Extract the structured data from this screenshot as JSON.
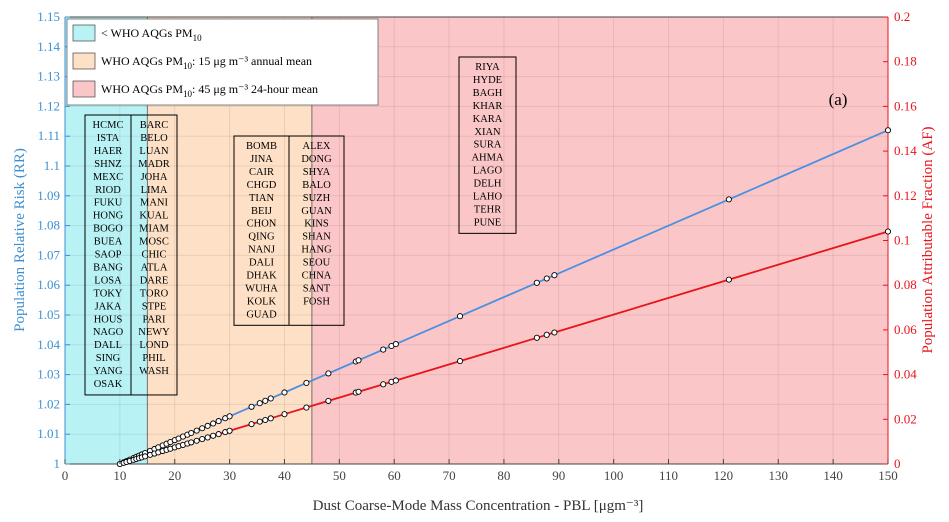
{
  "chart_data": {
    "type": "line",
    "panel_label": "(a)",
    "xlabel": "Dust Coarse-Mode Mass Concentration - PBL  [μgm⁻³]",
    "ylabel_left": "Population Relative Risk (RR)",
    "ylabel_right": "Population Attributable Fraction (AF)",
    "xlim": [
      0,
      150
    ],
    "ylim_left": [
      1,
      1.15
    ],
    "ylim_right": [
      0,
      0.2
    ],
    "x_ticks": [
      "0",
      "10",
      "20",
      "30",
      "40",
      "50",
      "60",
      "70",
      "80",
      "90",
      "100",
      "110",
      "120",
      "130",
      "140",
      "150"
    ],
    "y_left_ticks": [
      "1",
      "1.01",
      "1.02",
      "1.03",
      "1.04",
      "1.05",
      "1.06",
      "1.07",
      "1.08",
      "1.09",
      "1.1",
      "1.11",
      "1.12",
      "1.13",
      "1.14",
      "1.15"
    ],
    "y_right_ticks": [
      "0",
      "0.02",
      "0.04",
      "0.06",
      "0.08",
      "0.1",
      "0.12",
      "0.14",
      "0.16",
      "0.18",
      "0.2"
    ],
    "grid": true,
    "colors": {
      "rr_line": "#4a90e2",
      "af_line": "#e8141b",
      "left_axis": "#3d8fd1",
      "right_axis": "#e8141b",
      "zone_below": "#b9f2f5",
      "zone_annual": "#fde0c6",
      "zone_24h": "#fbc6c8"
    },
    "zones": [
      {
        "from": 0,
        "to": 15,
        "color": "#b9f2f5",
        "legend": "< WHO AQGs PM",
        "sub": "10",
        "tail": ""
      },
      {
        "from": 15,
        "to": 45,
        "color": "#fde0c6",
        "legend": "WHO AQGs PM",
        "sub": "10",
        "tail": ": 15 μg m⁻³ annual mean"
      },
      {
        "from": 45,
        "to": 150,
        "color": "#fbc6c8",
        "legend": "WHO AQGs PM",
        "sub": "10",
        "tail": ": 45 μg m⁻³ 24-hour mean"
      }
    ],
    "legend_position": "top-left",
    "series": [
      {
        "axis": "left",
        "x": [
          10,
          10.7,
          11.2,
          11.8,
          12.5,
          13,
          13.5,
          14,
          14.6,
          15.5,
          16.3,
          17,
          17.8,
          18.5,
          19.2,
          20,
          20.7,
          21.5,
          22.3,
          23,
          24,
          25,
          26,
          27,
          28,
          29.2,
          30,
          34,
          35.5,
          36.5,
          37.5,
          40,
          44,
          48,
          53,
          53.5,
          58,
          59.5,
          60.3,
          72,
          86,
          87.8,
          89.2,
          121,
          150
        ],
        "values": [
          1.0,
          1.00056,
          1.00096,
          1.00144,
          1.002,
          1.0024,
          1.0028,
          1.0032,
          1.00368,
          1.0044,
          1.00504,
          1.0056,
          1.00624,
          1.0068,
          1.00736,
          1.008,
          1.00856,
          1.0092,
          1.00984,
          1.0104,
          1.0112,
          1.012,
          1.0128,
          1.0136,
          1.0144,
          1.01536,
          1.016,
          1.0192,
          1.0204,
          1.0212,
          1.022,
          1.024,
          1.0272,
          1.0304,
          1.0344,
          1.0348,
          1.0384,
          1.0396,
          1.04024,
          1.0496,
          1.0608,
          1.06224,
          1.06336,
          1.0888,
          1.112
        ]
      },
      {
        "axis": "right",
        "x": [
          10,
          10.7,
          11.2,
          11.8,
          12.5,
          13,
          13.5,
          14,
          14.6,
          15.5,
          16.3,
          17,
          17.8,
          18.5,
          19.2,
          20,
          20.7,
          21.5,
          22.3,
          23,
          24,
          25,
          26,
          27,
          28,
          29.2,
          30,
          34,
          35.5,
          36.5,
          37.5,
          40,
          44,
          48,
          53,
          53.5,
          58,
          59.5,
          60.3,
          72,
          86,
          87.8,
          89.2,
          121,
          150
        ],
        "values": [
          0,
          0.00052,
          0.00089,
          0.00134,
          0.00186,
          0.00223,
          0.0026,
          0.00297,
          0.00342,
          0.00409,
          0.00468,
          0.0052,
          0.0058,
          0.00632,
          0.00684,
          0.00743,
          0.00795,
          0.00854,
          0.00914,
          0.00966,
          0.0104,
          0.01115,
          0.01189,
          0.01263,
          0.01338,
          0.01427,
          0.01486,
          0.01783,
          0.01895,
          0.01969,
          0.02043,
          0.02229,
          0.02526,
          0.02823,
          0.03195,
          0.03232,
          0.03566,
          0.03678,
          0.03737,
          0.04606,
          0.05646,
          0.0578,
          0.05884,
          0.08249,
          0.10403
        ]
      }
    ],
    "city_boxes": [
      {
        "zone": "below",
        "columns": [
          [
            "HCMC",
            "ISTA",
            "HAER",
            "SHNZ",
            "MEXC",
            "RIOD",
            "FUKU",
            "HONG",
            "BOGO",
            "BUEA",
            "SAOP",
            "BANG",
            "LOSA",
            "TOKY",
            "JAKA",
            "HOUS",
            "NAGO",
            "DALL",
            "SING",
            "YANG",
            "OSAK"
          ],
          [
            "BARC",
            "BELO",
            "LUAN",
            "MADR",
            "JOHA",
            "LIMA",
            "MANI",
            "KUAL",
            "MIAM",
            "MOSC",
            "CHIC",
            "ATLA",
            "DARE",
            "TORO",
            "STPE",
            "PARI",
            "NEWY",
            "LOND",
            "PHIL",
            "WASH"
          ]
        ]
      },
      {
        "zone": "annual",
        "columns": [
          [
            "BOMB",
            "JINA",
            "CAIR",
            "CHGD",
            "TIAN",
            "BEIJ",
            "CHON",
            "QING",
            "NANJ",
            "DALI",
            "DHAK",
            "WUHA",
            "KOLK",
            "GUAD"
          ],
          [
            "ALEX",
            "DONG",
            "SHYA",
            "BALO",
            "SUZH",
            "GUAN",
            "KINS",
            "SHAN",
            "HANG",
            "SEOU",
            "CHNA",
            "SANT",
            "FOSH"
          ]
        ]
      },
      {
        "zone": "day",
        "columns": [
          [
            "RIYA",
            "HYDE",
            "BAGH",
            "KHAR",
            "KARA",
            "XIAN",
            "SURA",
            "AHMA",
            "LAGO",
            "DELH",
            "LAHO",
            "TEHR",
            "PUNE"
          ]
        ]
      }
    ]
  }
}
